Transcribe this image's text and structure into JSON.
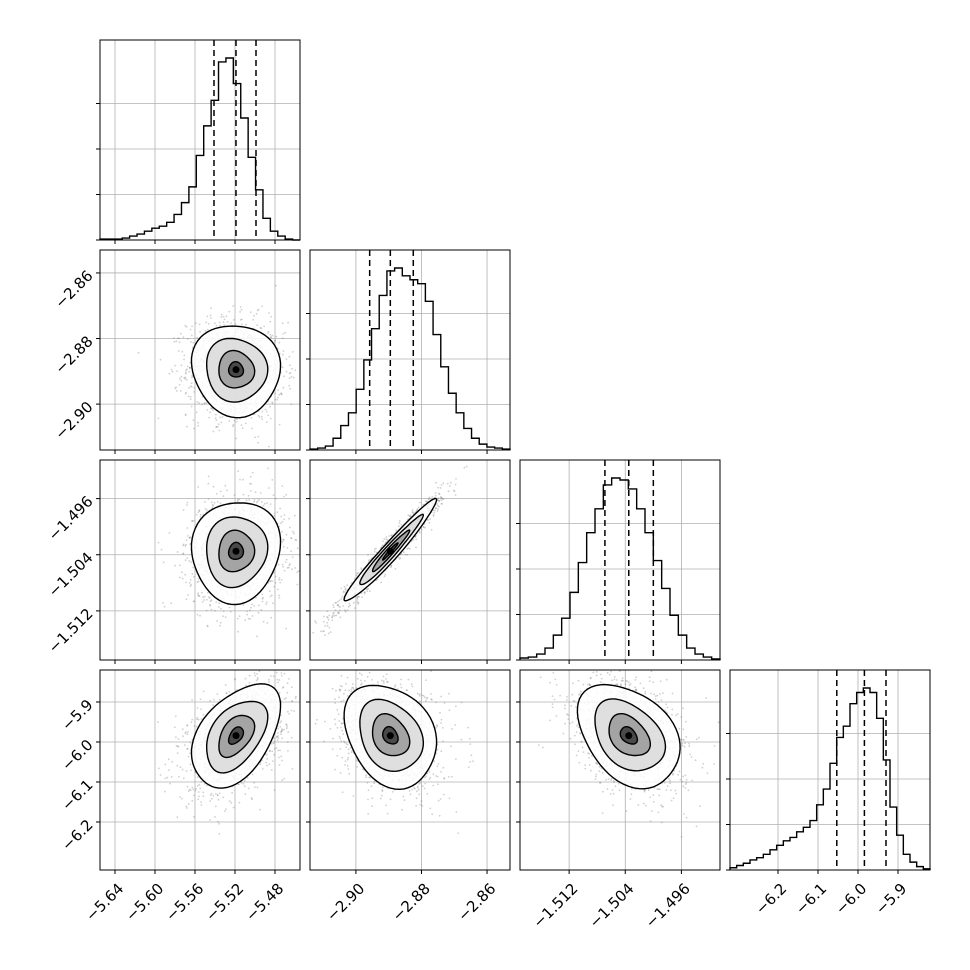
{
  "chart_data": {
    "type": "corner",
    "title": "",
    "parameters": [
      {
        "label": "",
        "range": [
          -5.655,
          -5.455
        ],
        "ticks": [
          -5.64,
          -5.6,
          -5.56,
          -5.52,
          -5.48
        ],
        "tick_labels": [
          "−5.64",
          "−5.60",
          "−5.56",
          "−5.52",
          "−5.48"
        ],
        "quantiles": [
          -5.541,
          -5.519,
          -5.499
        ],
        "median": -5.519,
        "histogram": [
          1,
          1,
          1,
          2,
          4,
          6,
          9,
          12,
          14,
          18,
          26,
          38,
          54,
          86,
          116,
          142,
          181,
          185,
          159,
          124,
          84,
          51,
          22,
          9,
          4,
          1,
          0
        ]
      },
      {
        "label": "",
        "range": [
          -2.914,
          -2.853
        ],
        "ticks": [
          -2.9,
          -2.88,
          -2.86
        ],
        "tick_labels": [
          "−2.90",
          "−2.88",
          "−2.86"
        ],
        "quantiles": [
          -2.8958,
          -2.8895,
          -2.8825
        ],
        "median": -2.8895,
        "histogram": [
          1,
          2,
          4,
          12,
          25,
          38,
          62,
          92,
          124,
          158,
          183,
          186,
          178,
          174,
          170,
          152,
          118,
          85,
          58,
          38,
          22,
          12,
          6,
          3,
          2,
          1
        ]
      },
      {
        "label": "",
        "range": [
          -1.519,
          -1.4905
        ],
        "ticks": [
          -1.512,
          -1.504,
          -1.496
        ],
        "tick_labels": [
          "−1.512",
          "−1.504",
          "−1.496"
        ],
        "quantiles": [
          -1.5069,
          -1.5035,
          -1.5
        ],
        "median": -1.5035,
        "histogram": [
          2,
          3,
          6,
          12,
          25,
          42,
          68,
          98,
          128,
          152,
          176,
          183,
          181,
          172,
          152,
          128,
          100,
          72,
          45,
          25,
          12,
          6,
          3,
          1
        ]
      },
      {
        "label": "",
        "range": [
          -6.32,
          -5.82
        ],
        "ticks": [
          -6.2,
          -6.1,
          -6.0,
          -5.9
        ],
        "tick_labels": [
          "−6.2",
          "−6.1",
          "−6.0",
          "−5.9"
        ],
        "quantiles": [
          -6.053,
          -5.984,
          -5.93
        ],
        "median": -5.984,
        "histogram": [
          2,
          4,
          6,
          9,
          11,
          14,
          18,
          22,
          26,
          29,
          34,
          38,
          44,
          58,
          72,
          95,
          118,
          128,
          148,
          158,
          162,
          158,
          135,
          98,
          56,
          31,
          14,
          7,
          3,
          1
        ]
      }
    ],
    "grid": true,
    "legend": "none"
  }
}
